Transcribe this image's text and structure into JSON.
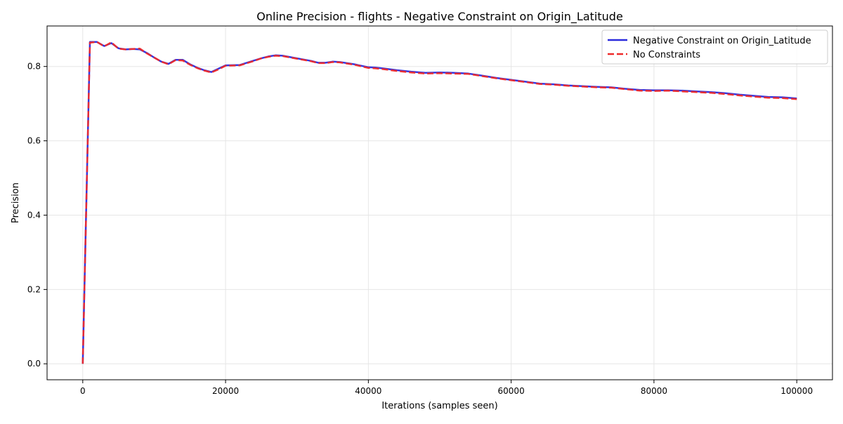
{
  "chart_data": {
    "type": "line",
    "title": "Online Precision - flights - Negative Constraint on Origin_Latitude",
    "xlabel": "Iterations (samples seen)",
    "ylabel": "Precision",
    "xlim": [
      -5000,
      105000
    ],
    "ylim": [
      -0.043,
      0.909
    ],
    "x_ticks": [
      0,
      20000,
      40000,
      60000,
      80000,
      100000
    ],
    "x_tick_labels": [
      "0",
      "20000",
      "40000",
      "60000",
      "80000",
      "100000"
    ],
    "y_ticks": [
      0.0,
      0.2,
      0.4,
      0.6,
      0.8
    ],
    "y_tick_labels": [
      "0.0",
      "0.2",
      "0.4",
      "0.6",
      "0.8"
    ],
    "grid": true,
    "legend_position": "upper right",
    "series": [
      {
        "name": "Negative Constraint on Origin_Latitude",
        "color": "#2b2bdd",
        "style": "solid",
        "x": [
          0,
          1000,
          2000,
          3000,
          4000,
          5000,
          6000,
          7000,
          8000,
          9000,
          10000,
          11000,
          12000,
          13000,
          14000,
          15000,
          16000,
          17000,
          18000,
          19000,
          20000,
          22000,
          24000,
          25000,
          26000,
          27000,
          28000,
          30000,
          32000,
          33000,
          34000,
          35000,
          36000,
          38000,
          40000,
          41000,
          42000,
          44000,
          46000,
          48000,
          50000,
          52000,
          54000,
          56000,
          58000,
          60000,
          62000,
          64000,
          66000,
          68000,
          70000,
          72000,
          74000,
          76000,
          78000,
          80000,
          82000,
          84000,
          86000,
          88000,
          90000,
          92000,
          94000,
          96000,
          98000,
          100000
        ],
        "y": [
          0.0,
          0.866,
          0.866,
          0.855,
          0.863,
          0.849,
          0.846,
          0.847,
          0.846,
          0.836,
          0.824,
          0.813,
          0.807,
          0.818,
          0.818,
          0.806,
          0.797,
          0.79,
          0.785,
          0.794,
          0.803,
          0.804,
          0.816,
          0.822,
          0.827,
          0.83,
          0.829,
          0.822,
          0.815,
          0.81,
          0.81,
          0.813,
          0.812,
          0.806,
          0.798,
          0.797,
          0.795,
          0.79,
          0.786,
          0.783,
          0.784,
          0.783,
          0.781,
          0.775,
          0.769,
          0.764,
          0.759,
          0.754,
          0.752,
          0.749,
          0.747,
          0.745,
          0.744,
          0.74,
          0.737,
          0.736,
          0.736,
          0.735,
          0.733,
          0.731,
          0.728,
          0.724,
          0.721,
          0.718,
          0.717,
          0.714
        ]
      },
      {
        "name": "No Constraints",
        "color": "#ee2a2a",
        "style": "dashed",
        "x": [
          0,
          1000,
          2000,
          3000,
          4000,
          5000,
          6000,
          7000,
          8000,
          9000,
          10000,
          11000,
          12000,
          13000,
          14000,
          15000,
          16000,
          17000,
          18000,
          19000,
          20000,
          22000,
          24000,
          25000,
          26000,
          27000,
          28000,
          30000,
          32000,
          33000,
          34000,
          35000,
          36000,
          38000,
          40000,
          41000,
          42000,
          44000,
          46000,
          48000,
          50000,
          52000,
          54000,
          56000,
          58000,
          60000,
          62000,
          64000,
          66000,
          68000,
          70000,
          72000,
          74000,
          76000,
          78000,
          80000,
          82000,
          84000,
          86000,
          88000,
          90000,
          92000,
          94000,
          96000,
          98000,
          100000
        ],
        "y": [
          0.0,
          0.864,
          0.866,
          0.854,
          0.865,
          0.848,
          0.846,
          0.847,
          0.848,
          0.835,
          0.824,
          0.813,
          0.806,
          0.817,
          0.816,
          0.805,
          0.796,
          0.789,
          0.784,
          0.792,
          0.802,
          0.803,
          0.815,
          0.822,
          0.826,
          0.829,
          0.828,
          0.821,
          0.814,
          0.809,
          0.809,
          0.812,
          0.811,
          0.805,
          0.796,
          0.795,
          0.793,
          0.788,
          0.784,
          0.781,
          0.782,
          0.781,
          0.78,
          0.774,
          0.768,
          0.763,
          0.758,
          0.753,
          0.751,
          0.748,
          0.746,
          0.744,
          0.743,
          0.739,
          0.735,
          0.734,
          0.735,
          0.733,
          0.731,
          0.729,
          0.726,
          0.722,
          0.719,
          0.716,
          0.715,
          0.712
        ]
      }
    ]
  }
}
